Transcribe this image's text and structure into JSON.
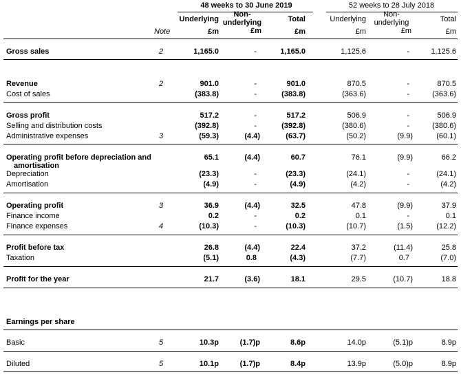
{
  "header": {
    "period_current": "48 weeks to 30 June 2019",
    "period_prior": "52 weeks to 28 July 2018",
    "note": "Note",
    "underlying": "Underlying",
    "non_underlying_1": "Non-",
    "non_underlying_2": "underlying",
    "total": "Total",
    "unit": "£m"
  },
  "rows": [
    {
      "label": "Gross sales",
      "bold": true,
      "note": "2",
      "c": [
        "1,165.0",
        "-",
        "1,165.0"
      ],
      "p": [
        "1,125.6",
        "-",
        "1,125.6"
      ]
    },
    {
      "label": "Revenue",
      "bold": true,
      "note": "2",
      "c": [
        "901.0",
        "-",
        "901.0"
      ],
      "p": [
        "870.5",
        "-",
        "870.5"
      ]
    },
    {
      "label": "Cost of sales",
      "bold": false,
      "note": "",
      "c": [
        "(383.8)",
        "-",
        "(383.8)"
      ],
      "p": [
        "(363.6)",
        "-",
        "(363.6)"
      ]
    },
    {
      "label": "Gross profit",
      "bold": true,
      "note": "",
      "c": [
        "517.2",
        "-",
        "517.2"
      ],
      "p": [
        "506.9",
        "-",
        "506.9"
      ]
    },
    {
      "label": "Selling and distribution costs",
      "bold": false,
      "note": "",
      "c": [
        "(392.8)",
        "-",
        "(392.8)"
      ],
      "p": [
        "(380.6)",
        "-",
        "(380.6)"
      ]
    },
    {
      "label": "Administrative expenses",
      "bold": false,
      "note": "3",
      "c": [
        "(59.3)",
        "(4.4)",
        "(63.7)"
      ],
      "p": [
        "(50.2)",
        "(9.9)",
        "(60.1)"
      ]
    },
    {
      "label": "Operating profit before depreciation and",
      "label2": "amortisation",
      "bold": true,
      "note": "",
      "c": [
        "65.1",
        "(4.4)",
        "60.7"
      ],
      "p": [
        "76.1",
        "(9.9)",
        "66.2"
      ]
    },
    {
      "label": "Depreciation",
      "bold": false,
      "note": "",
      "c": [
        "(23.3)",
        "-",
        "(23.3)"
      ],
      "p": [
        "(24.1)",
        "-",
        "(24.1)"
      ]
    },
    {
      "label": "Amortisation",
      "bold": false,
      "note": "",
      "c": [
        "(4.9)",
        "-",
        "(4.9)"
      ],
      "p": [
        "(4.2)",
        "-",
        "(4.2)"
      ]
    },
    {
      "label": "Operating profit",
      "bold": true,
      "note": "3",
      "c": [
        "36.9",
        "(4.4)",
        "32.5"
      ],
      "p": [
        "47.8",
        "(9.9)",
        "37.9"
      ]
    },
    {
      "label": "Finance income",
      "bold": false,
      "note": "",
      "c": [
        "0.2",
        "-",
        "0.2"
      ],
      "p": [
        "0.1",
        "-",
        "0.1"
      ]
    },
    {
      "label": "Finance expenses",
      "bold": false,
      "note": "4",
      "c": [
        "(10.3)",
        "-",
        "(10.3)"
      ],
      "p": [
        "(10.7)",
        "(1.5)",
        "(12.2)"
      ]
    },
    {
      "label": "Profit before tax",
      "bold": true,
      "note": "",
      "c": [
        "26.8",
        "(4.4)",
        "22.4"
      ],
      "p": [
        "37.2",
        "(11.4)",
        "25.8"
      ]
    },
    {
      "label": "Taxation",
      "bold": false,
      "note": "",
      "c": [
        "(5.1)",
        "0.8",
        "(4.3)"
      ],
      "p": [
        "(7.7)",
        "0.7",
        "(7.0)"
      ]
    },
    {
      "label": "Profit for the year",
      "bold": true,
      "note": "",
      "c": [
        "21.7",
        "(3.6)",
        "18.1"
      ],
      "p": [
        "29.5",
        "(10.7)",
        "18.8"
      ]
    },
    {
      "label": "Earnings per share",
      "bold": true,
      "note": "",
      "c": [
        "",
        "",
        ""
      ],
      "p": [
        "",
        "",
        ""
      ]
    },
    {
      "label": "Basic",
      "bold": false,
      "note": "5",
      "c": [
        "10.3p",
        "(1.7)p",
        "8.6p"
      ],
      "p": [
        "14.0p",
        "(5.1)p",
        "8.9p"
      ]
    },
    {
      "label": "Diluted",
      "bold": false,
      "note": "5",
      "c": [
        "10.1p",
        "(1.7)p",
        "8.4p"
      ],
      "p": [
        "13.9p",
        "(5.0)p",
        "8.9p"
      ]
    }
  ]
}
